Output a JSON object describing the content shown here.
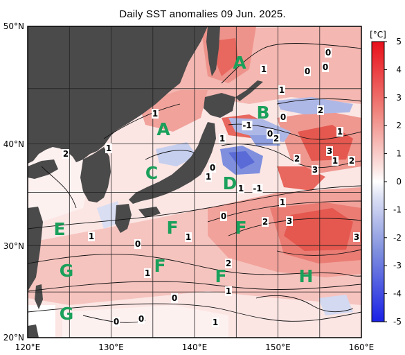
{
  "title": "Daily SST anomalies 09 Jun. 2025.",
  "colorbar": {
    "unit": "[°C]",
    "ticks": [
      "5",
      "4",
      "3",
      "2",
      "1",
      "0",
      "-1",
      "-2",
      "-3",
      "-4",
      "-5"
    ],
    "colors": {
      "warm_max": "#e8101a",
      "warm_mid": "#f19c95",
      "neutral": "#ffffff",
      "cool_mid": "#97a6e0",
      "cool_max": "#1a21e6"
    }
  },
  "axes": {
    "lat_labels": [
      "50°N",
      "40°N",
      "30°N",
      "20°N"
    ],
    "lon_labels": [
      "120°E",
      "130°E",
      "140°E",
      "150°E",
      "160°E"
    ]
  },
  "land_color": "#4a4a4a",
  "region_labels": [
    "A",
    "A",
    "B",
    "C",
    "D",
    "E",
    "F",
    "F",
    "F",
    "F",
    "G",
    "G",
    "H"
  ],
  "contour_labels": [
    "1",
    "0",
    "0",
    "0",
    "1",
    "1",
    "0",
    "2",
    "1",
    "-1",
    "0",
    "2",
    "1",
    "0",
    "1",
    "2",
    "3",
    "3",
    "1",
    "2",
    "2",
    "1",
    "1",
    "-1",
    "1",
    "2",
    "3",
    "3",
    "0",
    "1",
    "1",
    "1",
    "2",
    "1",
    "0",
    "0",
    "0",
    "0",
    "1"
  ]
}
